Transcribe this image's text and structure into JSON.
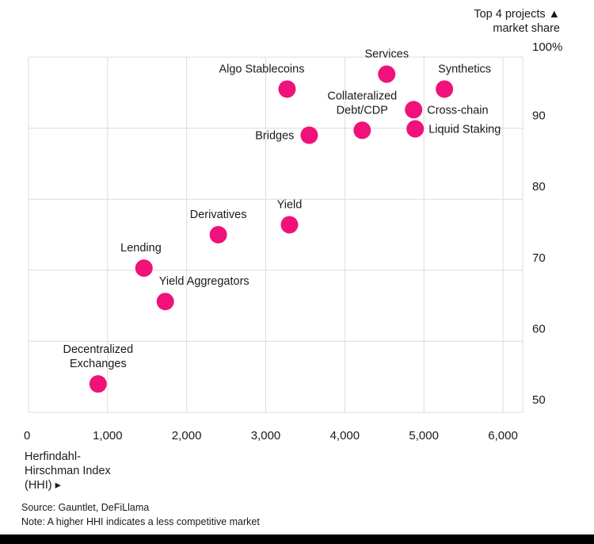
{
  "chart_data": {
    "type": "scatter",
    "title": "",
    "xlabel": [
      "Herfindahl-",
      "Hirschman Index",
      "(HHI) ▸"
    ],
    "ylabel": [
      "Top 4 projects ▲",
      "market share"
    ],
    "xlim": [
      0,
      6250
    ],
    "ylim": [
      50,
      100
    ],
    "x_ticks": [
      {
        "value": 0,
        "label": "0"
      },
      {
        "value": 1000,
        "label": "1,000"
      },
      {
        "value": 2000,
        "label": "2,000"
      },
      {
        "value": 3000,
        "label": "3,000"
      },
      {
        "value": 4000,
        "label": "4,000"
      },
      {
        "value": 5000,
        "label": "5,000"
      },
      {
        "value": 6000,
        "label": "6,000"
      }
    ],
    "y_ticks": [
      {
        "value": 50,
        "label": "50"
      },
      {
        "value": 60,
        "label": "60"
      },
      {
        "value": 70,
        "label": "70"
      },
      {
        "value": 80,
        "label": "80"
      },
      {
        "value": 90,
        "label": "90"
      },
      {
        "value": 100,
        "label": "100%"
      }
    ],
    "grid": true,
    "marker_color": "#f0127a",
    "points": [
      {
        "name": "Services",
        "lines": [
          "Services"
        ],
        "x": 4530,
        "y": 97.6,
        "label_pos": "above"
      },
      {
        "name": "Synthetics",
        "lines": [
          "Synthetics"
        ],
        "x": 5260,
        "y": 95.5,
        "label_pos": "above-right"
      },
      {
        "name": "Algo Stablecoins",
        "lines": [
          "Algo Stablecoins"
        ],
        "x": 3270,
        "y": 95.5,
        "label_pos": "above-left"
      },
      {
        "name": "Collateralized Debt/CDP",
        "lines": [
          "Collateralized",
          "Debt/CDP"
        ],
        "x": 4220,
        "y": 89.7,
        "label_pos": "above"
      },
      {
        "name": "Cross-chain",
        "lines": [
          "Cross-chain"
        ],
        "x": 4870,
        "y": 92.6,
        "label_pos": "right"
      },
      {
        "name": "Liquid Staking",
        "lines": [
          "Liquid Staking"
        ],
        "x": 4890,
        "y": 89.9,
        "label_pos": "right"
      },
      {
        "name": "Bridges",
        "lines": [
          "Bridges"
        ],
        "x": 3550,
        "y": 89.0,
        "label_pos": "left"
      },
      {
        "name": "Derivatives",
        "lines": [
          "Derivatives"
        ],
        "x": 2400,
        "y": 75.0,
        "label_pos": "above"
      },
      {
        "name": "Yield",
        "lines": [
          "Yield"
        ],
        "x": 3300,
        "y": 76.4,
        "label_pos": "above"
      },
      {
        "name": "Lending",
        "lines": [
          "Lending"
        ],
        "x": 1460,
        "y": 70.3,
        "label_pos": "above-left"
      },
      {
        "name": "Yield Aggregators",
        "lines": [
          "Yield Aggregators"
        ],
        "x": 1730,
        "y": 65.6,
        "label_pos": "above-right"
      },
      {
        "name": "Decentralized Exchanges",
        "lines": [
          "Decentralized",
          "Exchanges"
        ],
        "x": 880,
        "y": 54.0,
        "label_pos": "above"
      }
    ]
  },
  "footer": {
    "source": "Source: Gauntlet, DeFiLlama",
    "note": "Note: A higher HHI indicates a less competitive market"
  }
}
